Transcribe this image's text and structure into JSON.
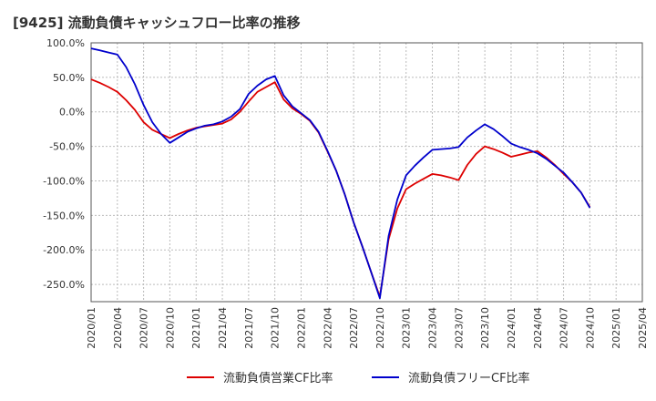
{
  "chart_data": {
    "type": "line",
    "title": "[9425]  流動負債キャッシュフロー比率の推移",
    "xlabel": "",
    "ylabel": "",
    "ylim": [
      -275,
      100
    ],
    "grid": true,
    "legend_position": "bottom",
    "y_ticks": [
      100,
      50,
      0,
      -50,
      -100,
      -150,
      -200,
      -250
    ],
    "y_tick_labels": [
      "100.0%",
      "50.0%",
      "0.0%",
      "-50.0%",
      "-100.0%",
      "-150.0%",
      "-200.0%",
      "-250.0%"
    ],
    "x_tick_labels": [
      "2020/01",
      "2020/04",
      "2020/07",
      "2020/10",
      "2021/01",
      "2021/04",
      "2021/07",
      "2021/10",
      "2022/01",
      "2022/04",
      "2022/07",
      "2022/10",
      "2023/01",
      "2023/04",
      "2023/07",
      "2023/10",
      "2024/01",
      "2024/04",
      "2024/07",
      "2024/10",
      "2025/01",
      "2025/04"
    ],
    "x": [
      "2020/01",
      "2020/02",
      "2020/03",
      "2020/04",
      "2020/05",
      "2020/06",
      "2020/07",
      "2020/08",
      "2020/09",
      "2020/10",
      "2020/11",
      "2020/12",
      "2021/01",
      "2021/02",
      "2021/03",
      "2021/04",
      "2021/05",
      "2021/06",
      "2021/07",
      "2021/08",
      "2021/09",
      "2021/10",
      "2021/11",
      "2021/12",
      "2022/01",
      "2022/02",
      "2022/03",
      "2022/04",
      "2022/05",
      "2022/06",
      "2022/07",
      "2022/08",
      "2022/09",
      "2022/10",
      "2022/11",
      "2022/12",
      "2023/01",
      "2023/02",
      "2023/03",
      "2023/04",
      "2023/05",
      "2023/06",
      "2023/07",
      "2023/08",
      "2023/09",
      "2023/10",
      "2023/11",
      "2023/12",
      "2024/01",
      "2024/02",
      "2024/03",
      "2024/04",
      "2024/05",
      "2024/06",
      "2024/07",
      "2024/08",
      "2024/09",
      "2024/10"
    ],
    "series": [
      {
        "name": "流動負債営業CF比率",
        "color": "#dd0000",
        "values": [
          47,
          42,
          36,
          29,
          17,
          3,
          -15,
          -26,
          -32,
          -38,
          -32,
          -27,
          -23,
          -21,
          -19,
          -17,
          -11,
          0,
          15,
          29,
          36,
          43,
          18,
          5,
          -3,
          -13,
          -30,
          -57,
          -85,
          -120,
          -160,
          -195,
          -232,
          -268,
          -185,
          -140,
          -112,
          -104,
          -97,
          -90,
          -92,
          -95,
          -99,
          -77,
          -61,
          -50,
          -54,
          -59,
          -65,
          -62,
          -59,
          -57,
          -66,
          -77,
          -90,
          -102,
          -117,
          -138
        ]
      },
      {
        "name": "流動負債フリーCF比率",
        "color": "#0000cc",
        "values": [
          92,
          89,
          86,
          83,
          65,
          40,
          10,
          -15,
          -32,
          -45,
          -37,
          -29,
          -24,
          -20,
          -18,
          -14,
          -7,
          4,
          26,
          38,
          47,
          52,
          24,
          8,
          -2,
          -12,
          -29,
          -56,
          -85,
          -120,
          -160,
          -195,
          -232,
          -270,
          -180,
          -127,
          -92,
          -78,
          -66,
          -55,
          -54,
          -53,
          -51,
          -37,
          -27,
          -18,
          -25,
          -35,
          -46,
          -51,
          -55,
          -60,
          -68,
          -78,
          -88,
          -102,
          -117,
          -139
        ]
      }
    ]
  }
}
